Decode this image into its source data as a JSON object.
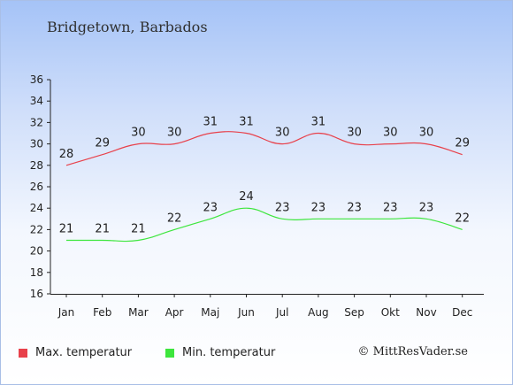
{
  "chart_data": {
    "type": "line",
    "title": "Bridgetown, Barbados",
    "categories": [
      "Jan",
      "Feb",
      "Mar",
      "Apr",
      "Maj",
      "Jun",
      "Jul",
      "Aug",
      "Sep",
      "Okt",
      "Nov",
      "Dec"
    ],
    "series": [
      {
        "name": "Max. temperatur",
        "color": "#e8414b",
        "values": [
          28,
          29,
          30,
          30,
          31,
          31,
          30,
          31,
          30,
          30,
          30,
          29
        ]
      },
      {
        "name": "Min. temperatur",
        "color": "#3de63d",
        "values": [
          21,
          21,
          21,
          22,
          23,
          24,
          23,
          23,
          23,
          23,
          23,
          22
        ]
      }
    ],
    "yticks": [
      16,
      18,
      20,
      22,
      24,
      26,
      28,
      30,
      32,
      34,
      36
    ],
    "ylim": [
      16,
      36
    ],
    "grid": false,
    "legend_placement": "bottom"
  },
  "copyright": "© MittResVader.se"
}
